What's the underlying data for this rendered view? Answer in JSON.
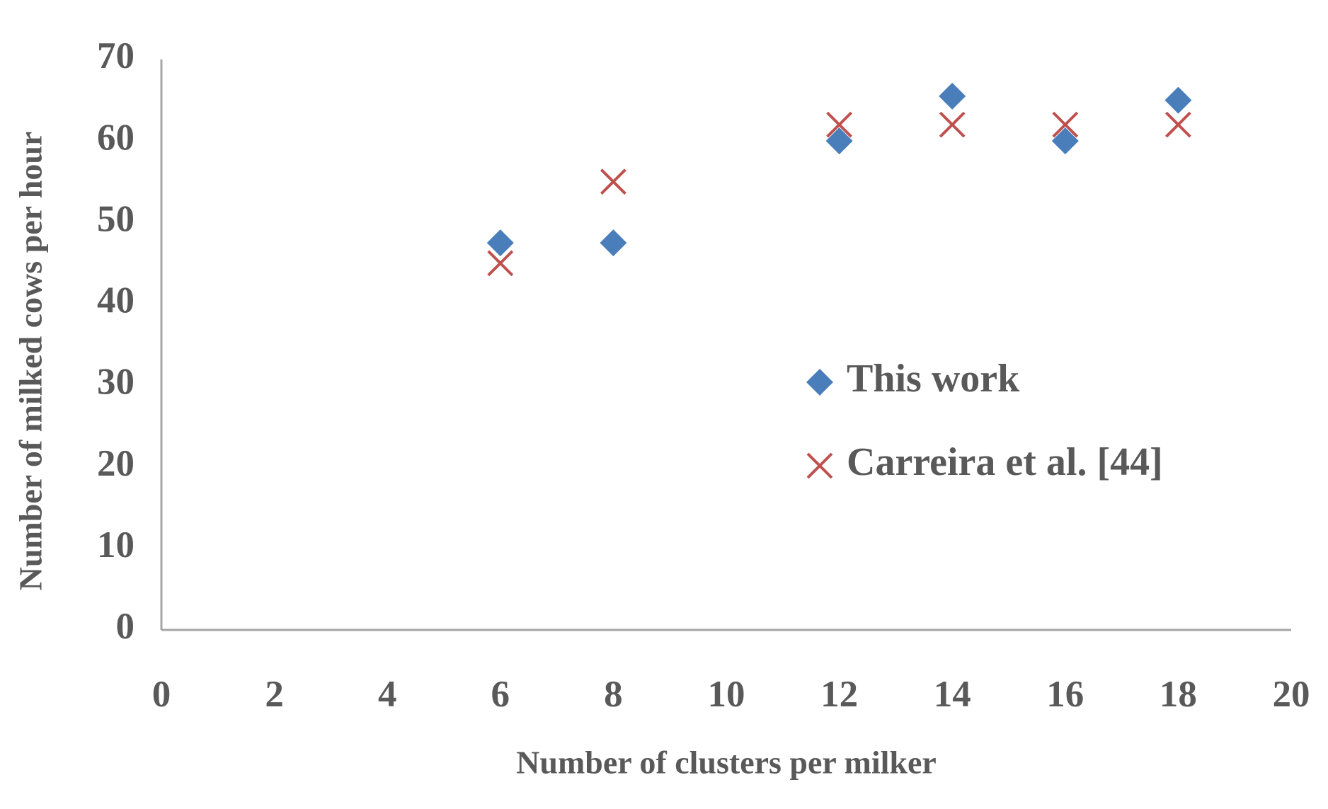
{
  "chart_data": {
    "type": "scatter",
    "x_label": "Number of clusters per milker",
    "y_label": "Number of milked cows per hour",
    "xlim": [
      0,
      20
    ],
    "xticks": [
      0,
      2,
      4,
      6,
      8,
      10,
      12,
      14,
      16,
      18,
      20
    ],
    "ylim": [
      0,
      70
    ],
    "yticks": [
      0,
      10,
      20,
      30,
      40,
      50,
      60,
      70
    ],
    "grid": false,
    "legend": "right",
    "series": [
      {
        "name": "This work",
        "color": "#4a7ebb",
        "marker": "diamond",
        "x": [
          6,
          8,
          12,
          14,
          16,
          18
        ],
        "values": [
          47.5,
          47.5,
          60,
          65.5,
          60,
          65
        ]
      },
      {
        "name": "Carreira et al. [44]",
        "color": "#c0504d",
        "marker": "x",
        "x": [
          6,
          8,
          12,
          14,
          16,
          18
        ],
        "values": [
          45,
          55,
          62,
          62,
          62,
          62
        ]
      }
    ]
  }
}
